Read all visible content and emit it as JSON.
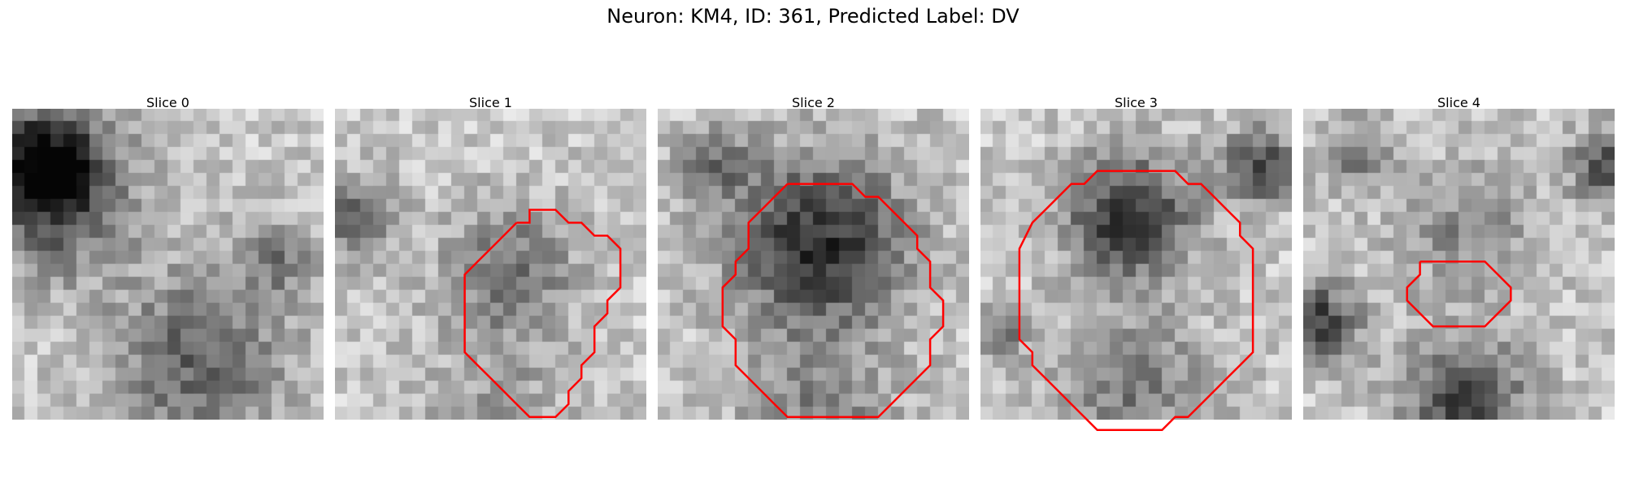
{
  "figure": {
    "title": "Neuron: KM4, ID: 361, Predicted Label: DV"
  },
  "panels": [
    {
      "title": "Slice 0",
      "contour": []
    },
    {
      "title": "Slice 1",
      "contour": [
        [
          11,
          4
        ],
        [
          12,
          4
        ],
        [
          12,
          3
        ],
        [
          13,
          3
        ],
        [
          14,
          3
        ],
        [
          15,
          4
        ],
        [
          16,
          4
        ],
        [
          17,
          5
        ],
        [
          18,
          5
        ],
        [
          19,
          6
        ],
        [
          19,
          9
        ],
        [
          18,
          10
        ],
        [
          18,
          11
        ],
        [
          17,
          12
        ],
        [
          17,
          14
        ],
        [
          16,
          15
        ],
        [
          16,
          16
        ],
        [
          15,
          17
        ],
        [
          15,
          18
        ],
        [
          14,
          19
        ],
        [
          12,
          19
        ],
        [
          11,
          18
        ],
        [
          10,
          17
        ],
        [
          9,
          16
        ],
        [
          8,
          15
        ],
        [
          7,
          14
        ],
        [
          7,
          8
        ],
        [
          8,
          7
        ],
        [
          9,
          6
        ],
        [
          10,
          5
        ],
        [
          11,
          4
        ]
      ]
    },
    {
      "title": "Slice 2",
      "contour": [
        [
          7,
          1
        ],
        [
          12,
          1
        ],
        [
          13,
          2
        ],
        [
          14,
          2
        ],
        [
          15,
          3
        ],
        [
          16,
          4
        ],
        [
          17,
          5
        ],
        [
          17,
          6
        ],
        [
          18,
          7
        ],
        [
          18,
          9
        ],
        [
          19,
          10
        ],
        [
          19,
          12
        ],
        [
          18,
          13
        ],
        [
          18,
          15
        ],
        [
          17,
          16
        ],
        [
          16,
          17
        ],
        [
          15,
          18
        ],
        [
          14,
          19
        ],
        [
          9,
          19
        ],
        [
          7,
          19
        ],
        [
          6,
          18
        ],
        [
          5,
          17
        ],
        [
          4,
          16
        ],
        [
          3,
          15
        ],
        [
          3,
          13
        ],
        [
          2,
          12
        ],
        [
          2,
          9
        ],
        [
          3,
          8
        ],
        [
          3,
          7
        ],
        [
          4,
          6
        ],
        [
          4,
          4
        ],
        [
          5,
          3
        ],
        [
          6,
          2
        ],
        [
          7,
          1
        ]
      ]
    },
    {
      "title": "Slice 3",
      "contour": [
        [
          8,
          0
        ],
        [
          12,
          0
        ],
        [
          13,
          1
        ],
        [
          14,
          1
        ],
        [
          15,
          2
        ],
        [
          16,
          3
        ],
        [
          17,
          4
        ],
        [
          17,
          5
        ],
        [
          18,
          6
        ],
        [
          18,
          10
        ],
        [
          18,
          14
        ],
        [
          17,
          15
        ],
        [
          16,
          16
        ],
        [
          15,
          17
        ],
        [
          14,
          18
        ],
        [
          13,
          19
        ],
        [
          12,
          19
        ],
        [
          11,
          20
        ],
        [
          8,
          20
        ],
        [
          6,
          20
        ],
        [
          5,
          19
        ],
        [
          4,
          18
        ],
        [
          3,
          17
        ],
        [
          2,
          16
        ],
        [
          1,
          15
        ],
        [
          1,
          14
        ],
        [
          0,
          13
        ],
        [
          0,
          6
        ],
        [
          1,
          4
        ],
        [
          2,
          3
        ],
        [
          3,
          2
        ],
        [
          4,
          1
        ],
        [
          5,
          1
        ],
        [
          6,
          0
        ],
        [
          8,
          0
        ]
      ]
    },
    {
      "title": "Slice 4",
      "contour": [
        [
          6,
          7
        ],
        [
          11,
          7
        ],
        [
          12,
          8
        ],
        [
          13,
          9
        ],
        [
          13,
          10
        ],
        [
          12,
          11
        ],
        [
          11,
          12
        ],
        [
          7,
          12
        ],
        [
          6,
          11
        ],
        [
          5,
          10
        ],
        [
          5,
          9
        ],
        [
          6,
          8
        ],
        [
          6,
          7
        ]
      ]
    }
  ]
}
